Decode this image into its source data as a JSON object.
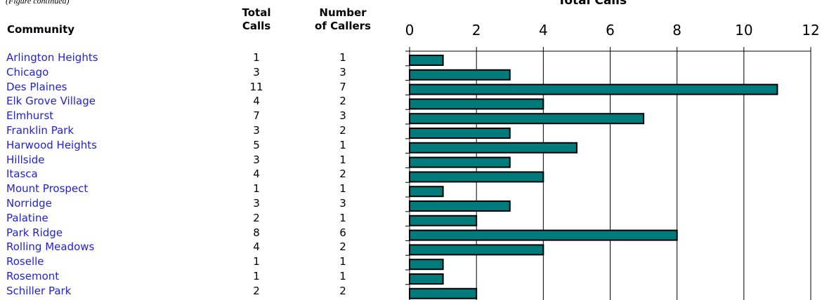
{
  "page": {
    "top_note": "(Figure continued)"
  },
  "table": {
    "headers": {
      "community": "Community",
      "total_calls": [
        "Total",
        "Calls"
      ],
      "number_of_callers": [
        "Number",
        "of Callers"
      ]
    },
    "rows": [
      {
        "community": "Arlington Heights",
        "total_calls": "1",
        "callers": "1"
      },
      {
        "community": "Chicago",
        "total_calls": "3",
        "callers": "3"
      },
      {
        "community": "Des Plaines",
        "total_calls": "11",
        "callers": "7"
      },
      {
        "community": "Elk Grove Village",
        "total_calls": "4",
        "callers": "2"
      },
      {
        "community": "Elmhurst",
        "total_calls": "7",
        "callers": "3"
      },
      {
        "community": "Franklin Park",
        "total_calls": "3",
        "callers": "2"
      },
      {
        "community": "Harwood Heights",
        "total_calls": "5",
        "callers": "1"
      },
      {
        "community": "Hillside",
        "total_calls": "3",
        "callers": "1"
      },
      {
        "community": "Itasca",
        "total_calls": "4",
        "callers": "2"
      },
      {
        "community": "Mount Prospect",
        "total_calls": "1",
        "callers": "1"
      },
      {
        "community": "Norridge",
        "total_calls": "3",
        "callers": "3"
      },
      {
        "community": "Palatine",
        "total_calls": "2",
        "callers": "1"
      },
      {
        "community": "Park Ridge",
        "total_calls": "8",
        "callers": "6"
      },
      {
        "community": "Rolling Meadows",
        "total_calls": "4",
        "callers": "2"
      },
      {
        "community": "Roselle",
        "total_calls": "1",
        "callers": "1"
      },
      {
        "community": "Rosemont",
        "total_calls": "1",
        "callers": "1"
      },
      {
        "community": "Schiller Park",
        "total_calls": "2",
        "callers": "2"
      }
    ]
  },
  "chart_data": {
    "type": "bar",
    "orientation": "horizontal",
    "title": "Total Calls",
    "xlabel": "",
    "ylabel": "",
    "categories": [
      "Arlington Heights",
      "Chicago",
      "Des Plaines",
      "Elk Grove Village",
      "Elmhurst",
      "Franklin Park",
      "Harwood Heights",
      "Hillside",
      "Itasca",
      "Mount Prospect",
      "Norridge",
      "Palatine",
      "Park Ridge",
      "Rolling Meadows",
      "Roselle",
      "Rosemont",
      "Schiller Park"
    ],
    "values": [
      1,
      3,
      11,
      4,
      7,
      3,
      5,
      3,
      4,
      1,
      3,
      2,
      8,
      4,
      1,
      1,
      2
    ],
    "xlim": [
      0,
      12
    ],
    "xticks": [
      0,
      2,
      4,
      6,
      8,
      10,
      12
    ],
    "tick_labels": [
      "0",
      "2",
      "4",
      "6",
      "8",
      "10",
      "12"
    ],
    "axis_position": "top",
    "grid": "vertical",
    "bar_color": "#007b7b",
    "bar_edge_color": "#000000",
    "grid_color": "#000000"
  }
}
